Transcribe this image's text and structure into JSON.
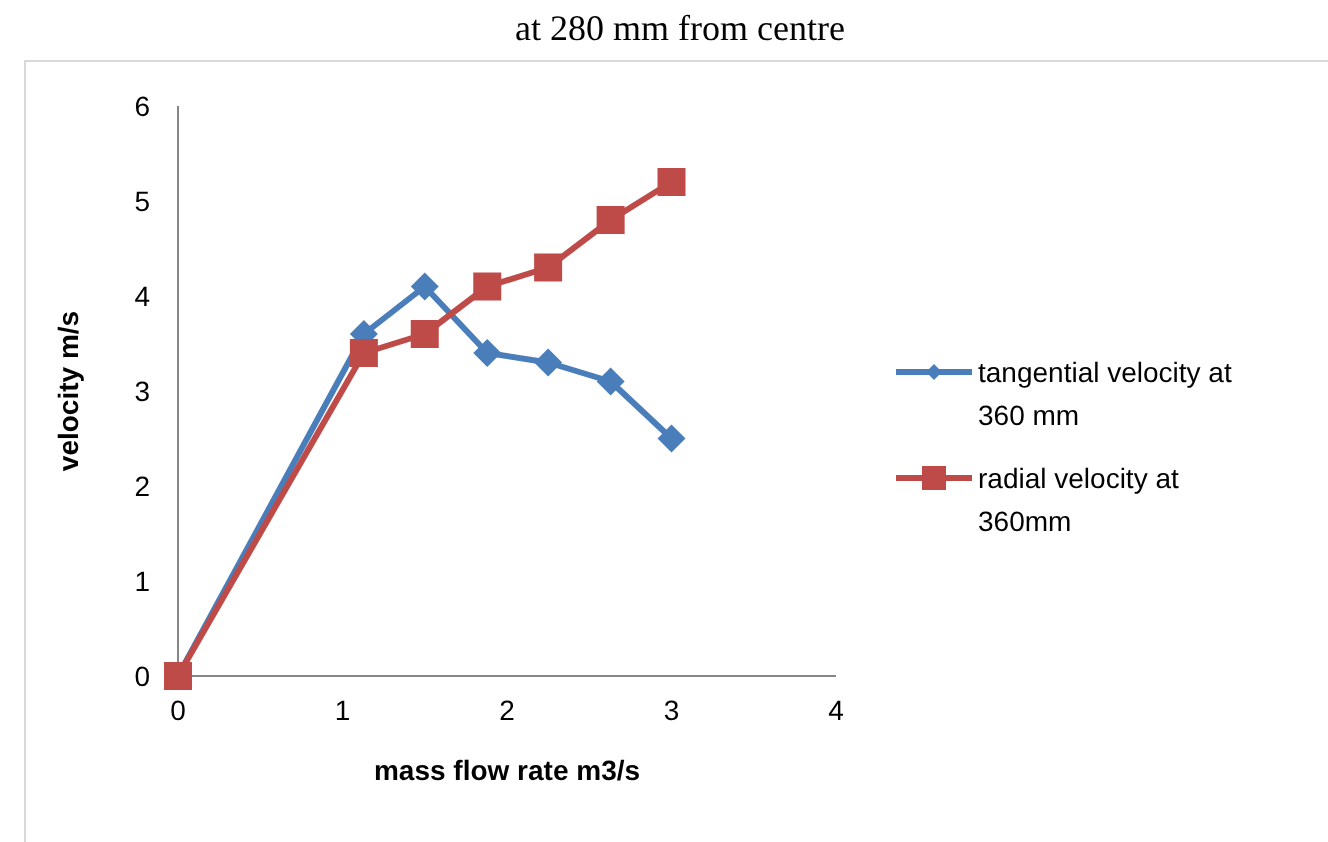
{
  "chart_data": {
    "type": "line",
    "title": "at 280 mm from centre",
    "xlabel": "mass flow rate m3/s",
    "ylabel": "velocity m/s",
    "x": [
      0,
      1.13,
      1.5,
      1.88,
      2.25,
      2.63,
      3
    ],
    "series": [
      {
        "name": "tangential velocity at 360 mm",
        "color": "#4a7ebb",
        "marker": "diamond",
        "values": [
          0,
          3.6,
          4.1,
          3.4,
          3.3,
          3.1,
          2.5
        ]
      },
      {
        "name": "radial velocity at 360mm",
        "color": "#be4b48",
        "marker": "square",
        "values": [
          0,
          3.4,
          3.6,
          4.1,
          4.3,
          4.8,
          5.2
        ]
      }
    ],
    "xlim": [
      0,
      4
    ],
    "xticks": [
      0,
      1,
      2,
      3,
      4
    ],
    "ylim": [
      0,
      6
    ],
    "yticks": [
      0,
      1,
      2,
      3,
      4,
      5,
      6
    ],
    "grid": false,
    "legend": "right"
  }
}
